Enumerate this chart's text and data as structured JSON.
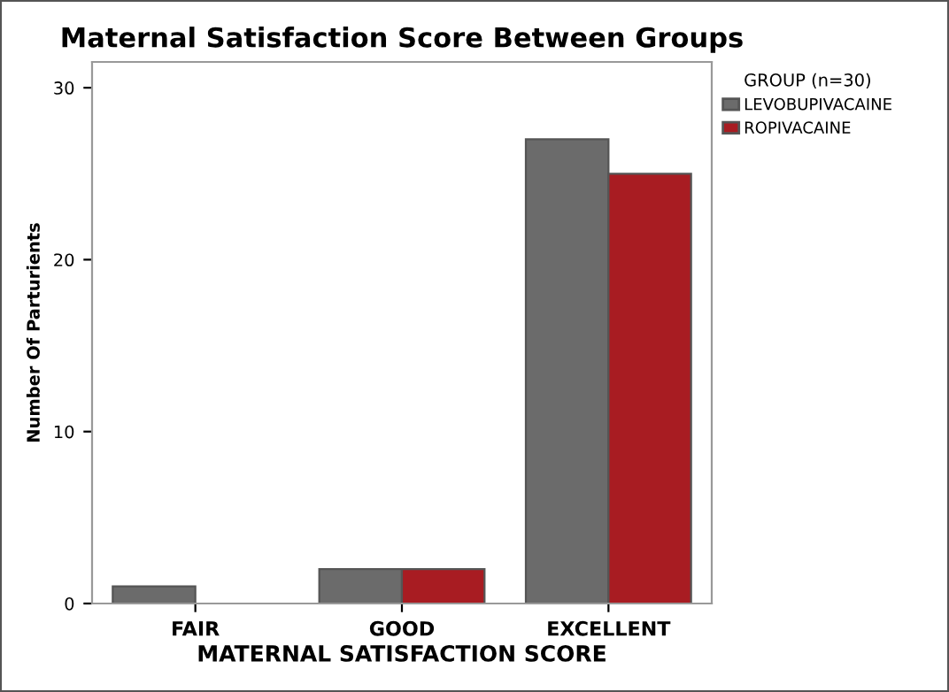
{
  "chart_data": {
    "type": "bar",
    "title": "Maternal Satisfaction Score Between Groups",
    "xlabel": "MATERNAL SATISFACTION SCORE",
    "ylabel": "Number Of Parturients",
    "legend_title": "GROUP (n=30)",
    "categories": [
      "FAIR",
      "GOOD",
      "EXCELLENT"
    ],
    "series": [
      {
        "name": "LEVOBUPIVACAINE",
        "color": "#6b6b6b",
        "values": [
          1,
          2,
          27
        ]
      },
      {
        "name": "ROPIVACAINE",
        "color": "#a81c22",
        "values": [
          0,
          2,
          25
        ]
      }
    ],
    "ylim": [
      0,
      31.5
    ],
    "yticks": [
      0,
      10,
      20,
      30
    ],
    "grid": false,
    "legend": "top right"
  }
}
